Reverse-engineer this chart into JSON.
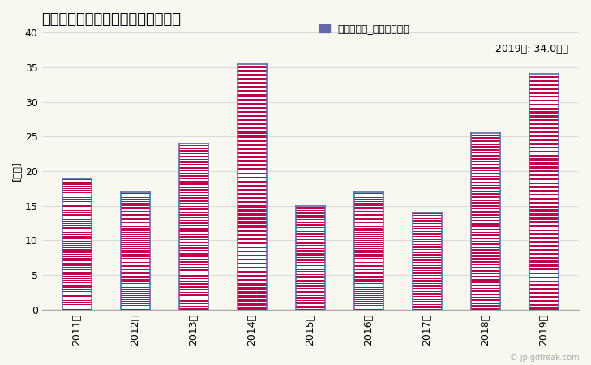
{
  "title": "全建築物の工事費予定額合計の推移",
  "legend_label": "全建築物計_工事費予定額",
  "ylabel": "[億円]",
  "annotation": "2019年: 34.0億円",
  "years": [
    "2011年",
    "2012年",
    "2013年",
    "2014年",
    "2015年",
    "2016年",
    "2017年",
    "2018年",
    "2019年"
  ],
  "values": [
    19.0,
    17.0,
    24.0,
    35.5,
    15.0,
    17.0,
    14.0,
    25.5,
    34.0
  ],
  "ylim": [
    0,
    40
  ],
  "yticks": [
    0,
    5,
    10,
    15,
    20,
    25,
    30,
    35,
    40
  ],
  "bar_fill_color": "#c0004e",
  "bar_stripe_color": "#ffffff",
  "bar_edge_color": "#6666aa",
  "bar_width": 0.5,
  "background_color": "#f8f8f0",
  "plot_bg_color": "#f8f8f0",
  "title_fontsize": 13,
  "axis_fontsize": 9,
  "legend_fontsize": 9,
  "annotation_fontsize": 9,
  "legend_color": "#6666aa",
  "watermark": "© jp.gdfreak.com",
  "stripe_count": 60
}
